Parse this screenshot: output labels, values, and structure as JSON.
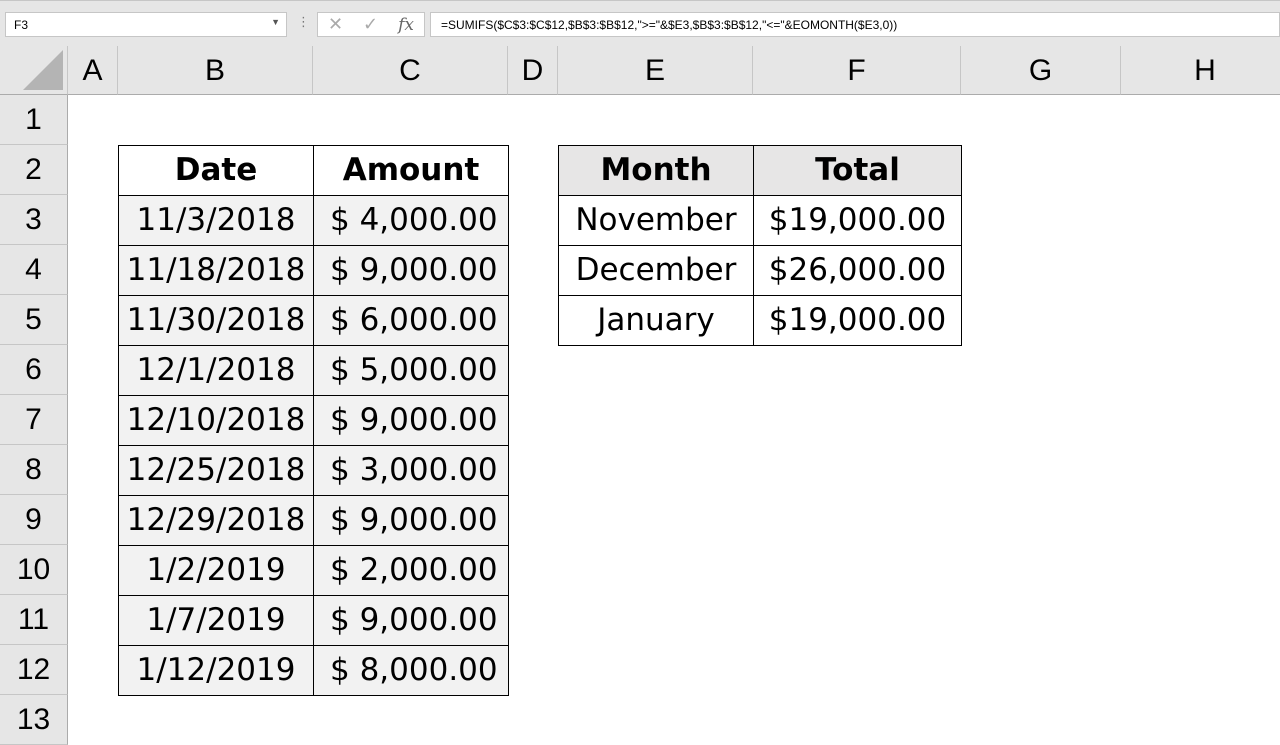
{
  "formula_bar": {
    "name_box": "F3",
    "formula": "=SUMIFS($C$3:$C$12,$B$3:$B$12,\">=\"&$E3,$B$3:$B$12,\"<=\"&EOMONTH($E3,0))",
    "cancel_icon": "✕",
    "enter_icon": "✓",
    "fx_label": "fx"
  },
  "columns": [
    "A",
    "B",
    "C",
    "D",
    "E",
    "F",
    "G",
    "H"
  ],
  "rows": [
    "1",
    "2",
    "3",
    "4",
    "5",
    "6",
    "7",
    "8",
    "9",
    "10",
    "11",
    "12",
    "13"
  ],
  "data_table": {
    "headers": [
      "Date",
      "Amount"
    ],
    "rows": [
      [
        "11/3/2018",
        "$ 4,000.00"
      ],
      [
        "11/18/2018",
        "$ 9,000.00"
      ],
      [
        "11/30/2018",
        "$ 6,000.00"
      ],
      [
        "12/1/2018",
        "$ 5,000.00"
      ],
      [
        "12/10/2018",
        "$ 9,000.00"
      ],
      [
        "12/25/2018",
        "$ 3,000.00"
      ],
      [
        "12/29/2018",
        "$ 9,000.00"
      ],
      [
        "1/2/2019",
        "$ 2,000.00"
      ],
      [
        "1/7/2019",
        "$ 9,000.00"
      ],
      [
        "1/12/2019",
        "$ 8,000.00"
      ]
    ]
  },
  "summary_table": {
    "headers": [
      "Month",
      "Total"
    ],
    "rows": [
      [
        "November",
        "$19,000.00"
      ],
      [
        "December",
        "$26,000.00"
      ],
      [
        "January",
        "$19,000.00"
      ]
    ]
  },
  "colors": {
    "header_bg": "#e6e6e6",
    "data_fill": "#f2f2f2",
    "summary_header_fill": "#e7e6e6"
  }
}
